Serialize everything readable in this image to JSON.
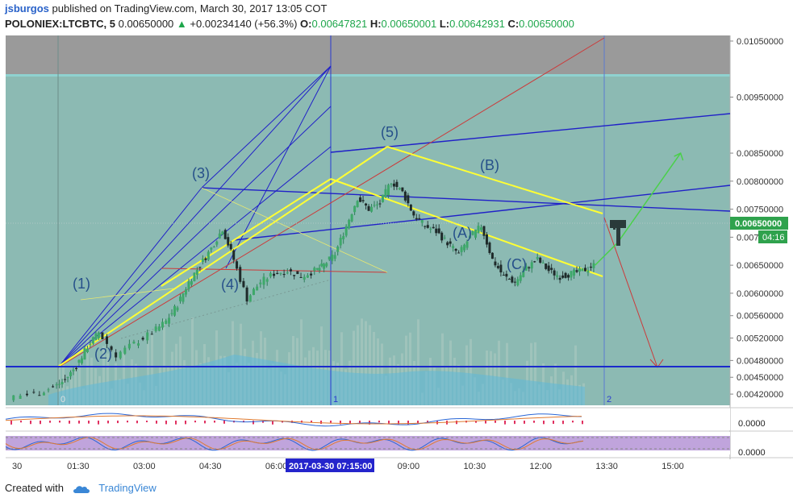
{
  "header": {
    "author": "jsburgos",
    "published_text": "published on TradingView.com, March 30, 2017 13:05 COT",
    "symbol_line": "POLONIEX:LTCBTC, 5",
    "last_price": "0.00650000",
    "change": "+0.00234140 (+56.3%)",
    "ohlc": {
      "o_label": "O:",
      "o": "0.00647821",
      "h_label": "H:",
      "h": "0.00650001",
      "l_label": "L:",
      "l": "0.00642931",
      "c_label": "C:",
      "c": "0.00650000"
    }
  },
  "colors": {
    "chart_bg": "#8cbab3",
    "band_top": "#9a9a9a",
    "up_candle": "#2e7d5a",
    "down_candle": "#2a3a3a",
    "fib_line": "#2020c8",
    "channel": "#ffff33",
    "price_label_bg": "#2fa24d",
    "time_marker_bg": "#2424cc",
    "brand_blue": "#3a87d6"
  },
  "chart_data": {
    "type": "line",
    "title": "",
    "symbol": "POLONIEX:LTCBTC",
    "interval": "5",
    "x_ticks": [
      "30",
      "01:30",
      "03:00",
      "04:30",
      "06:00",
      "09:00",
      "10:30",
      "12:00",
      "13:30",
      "15:00"
    ],
    "highlighted_time": "2017-03-30 07:15:00",
    "y_ticks": [
      "0.01050000",
      "0.00950000",
      "0.00850000",
      "0.00800000",
      "0.00750000",
      "0.00700000",
      "0.00650000",
      "0.00600000",
      "0.00560000",
      "0.00520000",
      "0.00480000",
      "0.00450000",
      "0.00420000"
    ],
    "current_price_label": "0.00650000",
    "countdown_label": "04:16",
    "wave_labels": [
      "(1)",
      "(2)",
      "(3)",
      "(4)",
      "(5)",
      "(A)",
      "(B)",
      "(C)"
    ],
    "cycle_markers": [
      "0",
      "1",
      "2"
    ],
    "indicator_1_value": "0.0000",
    "indicator_2_value": "0.0000",
    "price_path_time": [
      0.0,
      0.6,
      1.0,
      1.25,
      1.5,
      1.75,
      2.0,
      2.4,
      2.8,
      3.2,
      3.5,
      3.75,
      4.0,
      4.25,
      4.5,
      4.75,
      5.0,
      5.3,
      5.6,
      5.9,
      6.2,
      6.5,
      6.8,
      7.0,
      7.25,
      7.5,
      7.75,
      8.0,
      8.25,
      8.5,
      8.75,
      9.0,
      9.25,
      9.5,
      9.75,
      10.0,
      10.25,
      10.5,
      10.75,
      11.0,
      11.25,
      11.5,
      11.75,
      12.0,
      12.25,
      12.5,
      12.75,
      13.0
    ],
    "price_path_value": [
      0.00415,
      0.0042,
      0.00432,
      0.00445,
      0.0047,
      0.00505,
      0.0053,
      0.0049,
      0.0051,
      0.0053,
      0.0055,
      0.0058,
      0.0062,
      0.0065,
      0.0068,
      0.00715,
      0.0066,
      0.0059,
      0.0062,
      0.00635,
      0.0064,
      0.0063,
      0.0064,
      0.0065,
      0.0067,
      0.0072,
      0.0077,
      0.0075,
      0.0076,
      0.008,
      0.0078,
      0.0074,
      0.0072,
      0.0071,
      0.0069,
      0.0067,
      0.007,
      0.0072,
      0.0066,
      0.0063,
      0.0062,
      0.00645,
      0.0066,
      0.0064,
      0.0063,
      0.00635,
      0.0064,
      0.0065
    ],
    "projection": [
      {
        "name": "",
        "time": [
          13.0,
          13.5,
          14.9
        ],
        "value": [
          0.0065,
          0.0069,
          0.0085
        ]
      },
      {
        "name": "",
        "time": [
          13.0,
          14.7
        ],
        "value": [
          0.0065,
          0.0044
        ]
      }
    ],
    "support_level": 0.00445,
    "ylim": [
      0.004,
      0.0106
    ],
    "xlim": [
      -0.1,
      16.0
    ]
  },
  "footer": {
    "created_with": "Created with",
    "brand": "TradingView"
  }
}
